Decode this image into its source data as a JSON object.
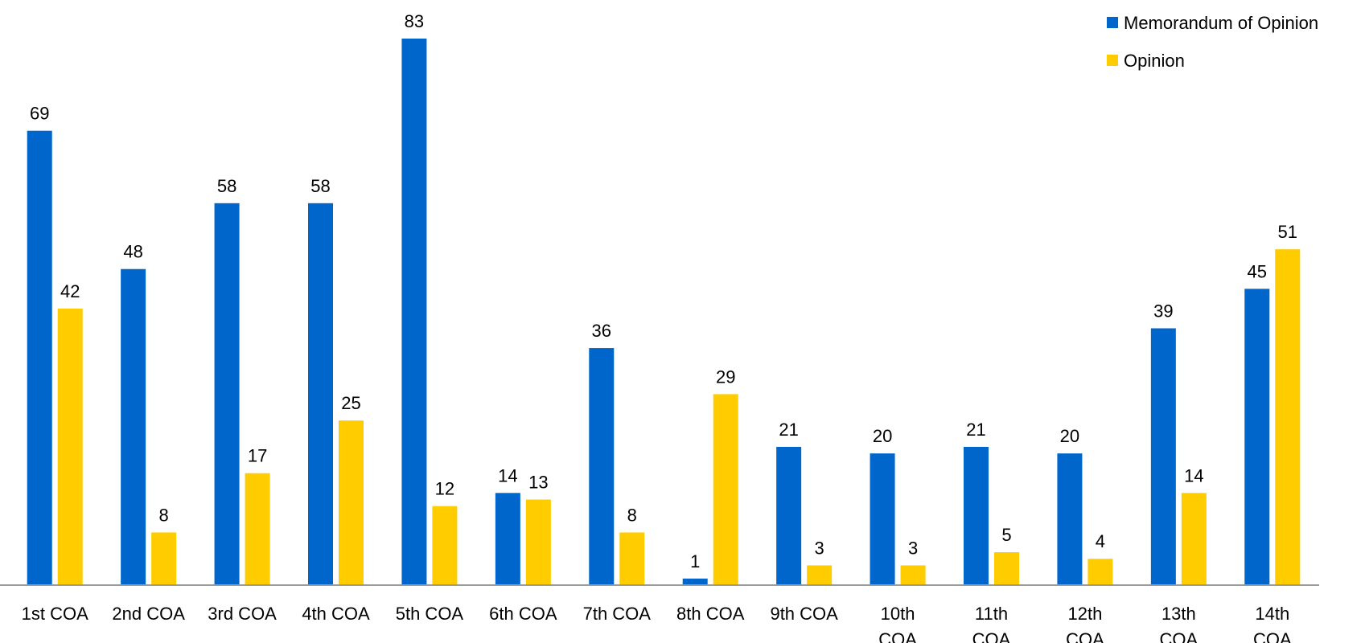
{
  "chart_data": {
    "type": "bar",
    "title": "",
    "xlabel": "",
    "ylabel": "",
    "ylim": [
      0,
      83
    ],
    "grid": false,
    "legend_position": "top-right",
    "categories": [
      [
        "1st COA"
      ],
      [
        "2nd COA"
      ],
      [
        "3rd COA"
      ],
      [
        "4th COA"
      ],
      [
        "5th COA"
      ],
      [
        "6th COA"
      ],
      [
        "7th COA"
      ],
      [
        "8th COA"
      ],
      [
        "9th COA"
      ],
      [
        "10th",
        "COA"
      ],
      [
        "11th",
        "COA"
      ],
      [
        "12th",
        "COA"
      ],
      [
        "13th",
        "COA"
      ],
      [
        "14th",
        "COA"
      ]
    ],
    "series": [
      {
        "name": "Memorandum of Opinion",
        "color": "#0066CC",
        "values": [
          69,
          48,
          58,
          58,
          83,
          14,
          36,
          1,
          21,
          20,
          21,
          20,
          39,
          45
        ]
      },
      {
        "name": "Opinion",
        "color": "#FFCC00",
        "values": [
          42,
          8,
          17,
          25,
          12,
          13,
          8,
          29,
          3,
          3,
          5,
          4,
          14,
          51
        ]
      }
    ]
  }
}
